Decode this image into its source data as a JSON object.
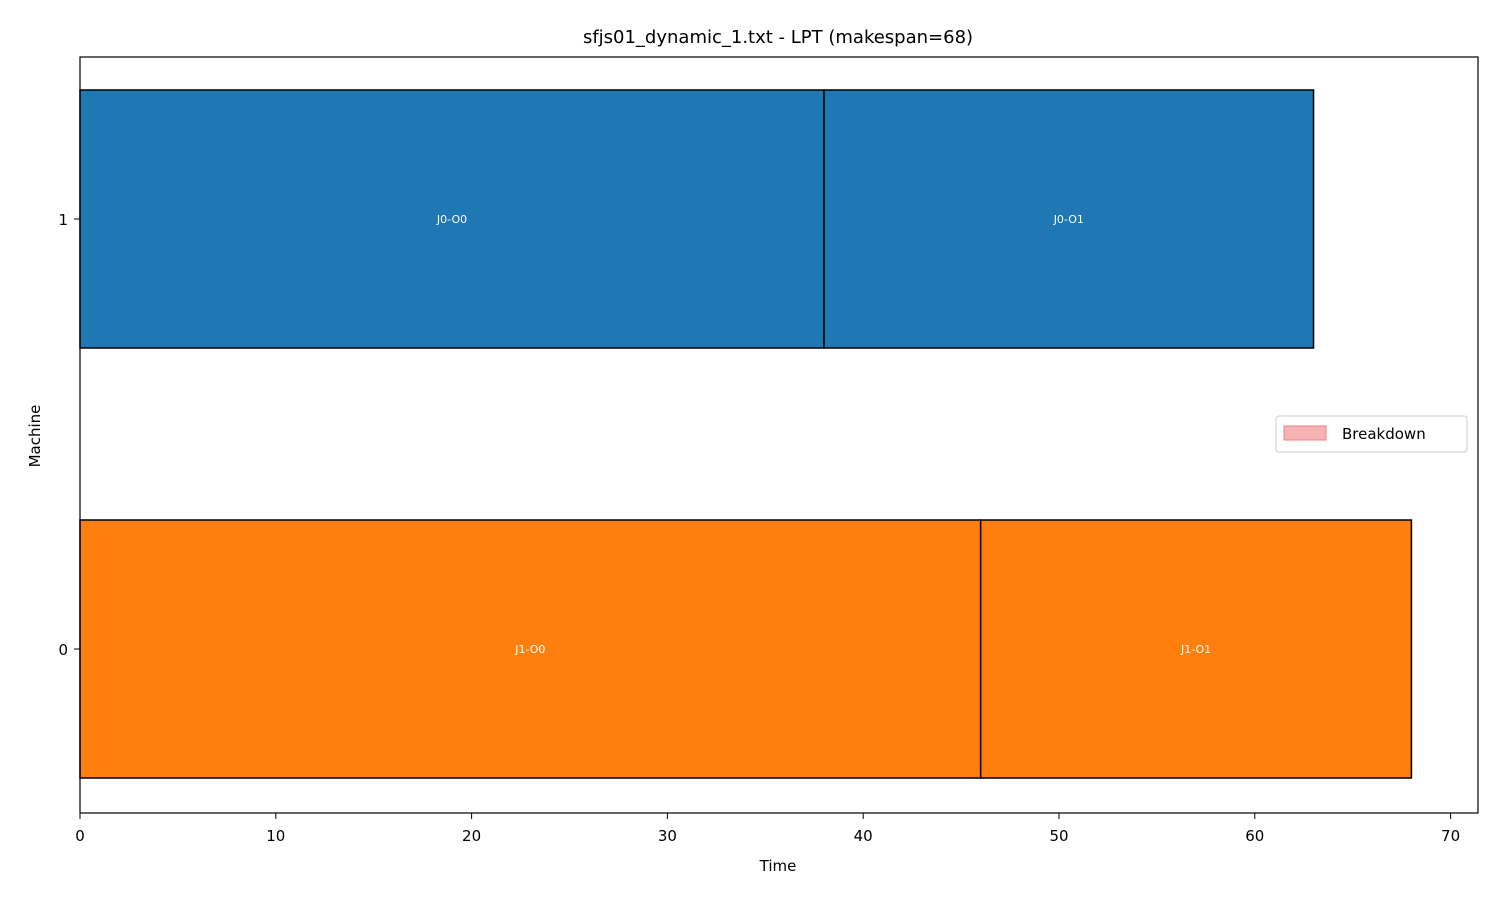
{
  "chart_data": {
    "type": "gantt",
    "title": "sfjs01_dynamic_1.txt - LPT (makespan=68)",
    "xlabel": "Time",
    "ylabel": "Machine",
    "xlim": [
      0,
      71.4
    ],
    "xticks": [
      0,
      10,
      20,
      30,
      40,
      50,
      60,
      70
    ],
    "machines": [
      1,
      0
    ],
    "tasks": [
      {
        "label": "J0-O0",
        "machine": 1,
        "start": 0,
        "end": 38,
        "color": "#1f77b4"
      },
      {
        "label": "J0-O1",
        "machine": 1,
        "start": 38,
        "end": 63,
        "color": "#1f77b4"
      },
      {
        "label": "J1-O0",
        "machine": 0,
        "start": 0,
        "end": 46,
        "color": "#ff7f0e"
      },
      {
        "label": "J1-O1",
        "machine": 0,
        "start": 46,
        "end": 68,
        "color": "#ff7f0e"
      }
    ],
    "legend": {
      "position": "center-right",
      "items": [
        {
          "label": "Breakdown",
          "color": "#f4b4b4",
          "edge": "#f08080"
        }
      ]
    },
    "grid": false
  }
}
